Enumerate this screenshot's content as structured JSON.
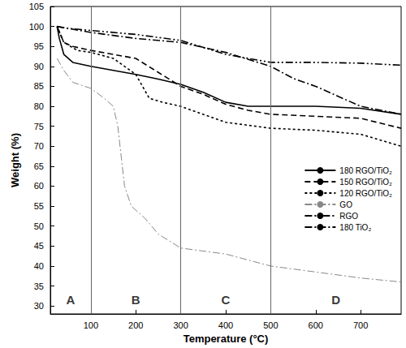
{
  "chart_data": {
    "type": "line",
    "x_label": "Temperature (°C)",
    "y_label": "Weight (%)",
    "xlim": [
      10,
      790
    ],
    "xticks": [
      100,
      200,
      300,
      400,
      500,
      600,
      700
    ],
    "ylim": [
      28,
      105
    ],
    "yticks": [
      30,
      35,
      40,
      45,
      50,
      55,
      60,
      65,
      70,
      75,
      80,
      85,
      90,
      95,
      100,
      105
    ],
    "grid": false,
    "legend": "right",
    "vlines": [
      100,
      300,
      500
    ],
    "annotations": [
      "A",
      "B",
      "C",
      "D"
    ],
    "series": [
      {
        "name": "180 RGO/TiO₂",
        "color": "#000000",
        "line_style": "solid",
        "x": [
          25,
          30,
          40,
          60,
          100,
          150,
          200,
          250,
          300,
          350,
          400,
          450,
          500,
          600,
          700,
          790
        ],
        "values": [
          100,
          97,
          93,
          91,
          90,
          89,
          88,
          86.8,
          85.5,
          83.5,
          81,
          80,
          80,
          80,
          79.5,
          78
        ]
      },
      {
        "name": "150 RGO/TiO₂",
        "color": "#000000",
        "line_style": "dashed",
        "x": [
          25,
          40,
          60,
          100,
          150,
          200,
          250,
          300,
          350,
          400,
          450,
          500,
          600,
          700,
          790
        ],
        "values": [
          100,
          96,
          95,
          94,
          93,
          92,
          88.5,
          85,
          83,
          80.5,
          79,
          78,
          77.5,
          77,
          74.5
        ]
      },
      {
        "name": "120 RGO/TiO₂",
        "color": "#000000",
        "line_style": "dotted",
        "x": [
          25,
          40,
          70,
          100,
          150,
          200,
          230,
          260,
          300,
          400,
          500,
          600,
          700,
          790
        ],
        "values": [
          100,
          96,
          94,
          93.5,
          92,
          88,
          82,
          81,
          80,
          76,
          74.5,
          74,
          73,
          70
        ]
      },
      {
        "name": "GO",
        "color": "#888888",
        "line_style": "dashdot",
        "x": [
          25,
          40,
          60,
          100,
          130,
          150,
          160,
          175,
          190,
          220,
          250,
          300,
          400,
          500,
          600,
          700,
          790
        ],
        "values": [
          92,
          89,
          86,
          84.5,
          82,
          80,
          75,
          60,
          55,
          52,
          48,
          44.5,
          43,
          40,
          38.5,
          37,
          36
        ]
      },
      {
        "name": "RGO",
        "color": "#000000",
        "line_style": "dashdotdot",
        "x": [
          25,
          50,
          100,
          200,
          300,
          400,
          500,
          600,
          700,
          790
        ],
        "values": [
          100,
          99.5,
          99,
          98,
          96.5,
          93,
          91,
          91,
          90.8,
          90.3
        ]
      },
      {
        "name": "180 TiO₂",
        "color": "#000000",
        "line_style": "dashdot",
        "x": [
          25,
          100,
          200,
          300,
          400,
          500,
          550,
          600,
          700,
          790
        ],
        "values": [
          100,
          98.5,
          97,
          96,
          93.5,
          90,
          87,
          85,
          80,
          78
        ]
      }
    ]
  }
}
